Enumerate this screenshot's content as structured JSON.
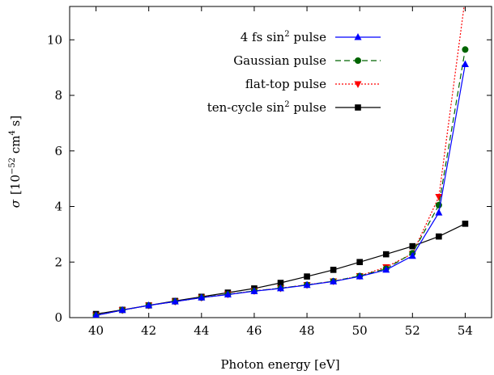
{
  "chart_data": {
    "type": "line",
    "xlabel": "Photon energy [eV]",
    "ylabel_parts": {
      "sigma": "σ",
      "open": "[10",
      "exp1": "−52",
      "mid": " cm",
      "exp2": "4",
      "close": " s]"
    },
    "xlim": [
      39,
      55
    ],
    "ylim": [
      0,
      11.2
    ],
    "x_ticks": [
      40,
      42,
      44,
      46,
      48,
      50,
      52,
      54
    ],
    "y_ticks": [
      0,
      2,
      4,
      6,
      8,
      10
    ],
    "grid": false,
    "legend_position": "top-center",
    "series": [
      {
        "name": "4 fs sin² pulse",
        "label_parts": {
          "base": "4 fs sin",
          "sup": "2",
          "tail": " pulse"
        },
        "color": "#0000ff",
        "dash": "solid",
        "marker": "triangle-up",
        "x": [
          40,
          41,
          42,
          43,
          44,
          45,
          46,
          47,
          48,
          49,
          50,
          51,
          52,
          53,
          54
        ],
        "y": [
          0.08,
          0.27,
          0.44,
          0.58,
          0.72,
          0.83,
          0.95,
          1.05,
          1.17,
          1.3,
          1.48,
          1.72,
          2.22,
          3.78,
          9.12
        ]
      },
      {
        "name": "Gaussian pulse",
        "label_parts": {
          "base": "Gaussian pulse",
          "sup": "",
          "tail": ""
        },
        "color": "#006400",
        "dash": "dashed",
        "marker": "circle",
        "x": [
          40,
          41,
          42,
          43,
          44,
          45,
          46,
          47,
          48,
          49,
          50,
          51,
          52,
          53,
          54
        ],
        "y": [
          0.08,
          0.27,
          0.44,
          0.58,
          0.72,
          0.84,
          0.96,
          1.06,
          1.18,
          1.31,
          1.5,
          1.76,
          2.32,
          4.05,
          9.65
        ]
      },
      {
        "name": "flat-top pulse",
        "label_parts": {
          "base": "flat-top pulse",
          "sup": "",
          "tail": ""
        },
        "color": "#ff0000",
        "dash": "dotted",
        "marker": "triangle-down",
        "x": [
          40,
          41,
          42,
          43,
          44,
          45,
          46,
          47,
          48,
          49,
          50,
          51,
          52,
          53,
          54
        ],
        "y": [
          0.08,
          0.27,
          0.44,
          0.58,
          0.72,
          0.84,
          0.96,
          1.06,
          1.18,
          1.31,
          1.5,
          1.82,
          2.3,
          4.35,
          11.5
        ]
      },
      {
        "name": "ten-cycle sin² pulse",
        "label_parts": {
          "base": "ten-cycle sin",
          "sup": "2",
          "tail": " pulse"
        },
        "color": "#000000",
        "dash": "solid",
        "marker": "square",
        "x": [
          40,
          41,
          42,
          43,
          44,
          45,
          46,
          47,
          48,
          49,
          50,
          51,
          52,
          53,
          54
        ],
        "y": [
          0.13,
          0.28,
          0.44,
          0.6,
          0.75,
          0.9,
          1.05,
          1.25,
          1.48,
          1.72,
          2.0,
          2.28,
          2.57,
          2.92,
          3.38
        ]
      }
    ]
  }
}
